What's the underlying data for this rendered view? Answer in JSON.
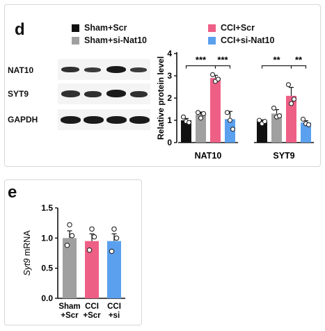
{
  "panel_d": {
    "letter": "d",
    "legend": [
      {
        "label": "Sham+Scr",
        "color": "#111111"
      },
      {
        "label": "CCI+Scr",
        "color": "#ee5f86"
      },
      {
        "label": "Sham+si-Nat10",
        "color": "#a0a0a0"
      },
      {
        "label": "CCI+si-Nat10",
        "color": "#5aa0ee"
      }
    ],
    "blot_labels": [
      "NAT10",
      "SYT9",
      "GAPDH"
    ]
  },
  "panel_e": {
    "letter": "e"
  },
  "chart_data": [
    {
      "type": "bar",
      "ylabel": "Relative protein level",
      "ylim": [
        0,
        4
      ],
      "yticks": [
        "0",
        "1",
        "2",
        "3",
        "4"
      ],
      "groups": [
        "NAT10",
        "SYT9"
      ],
      "categories": [
        "Sham+Scr",
        "Sham+si-Nat10",
        "CCI+Scr",
        "CCI+si-Nat10"
      ],
      "colors": [
        "#111111",
        "#a0a0a0",
        "#ee5f86",
        "#5aa0ee"
      ],
      "series": [
        {
          "group": "NAT10",
          "values": [
            1.0,
            1.25,
            2.9,
            1.05
          ],
          "errors": [
            0.08,
            0.12,
            0.12,
            0.35
          ],
          "points": [
            [
              1.15,
              0.95,
              0.9
            ],
            [
              1.35,
              1.1,
              1.3
            ],
            [
              3.05,
              2.75,
              2.85
            ],
            [
              1.35,
              1.0,
              0.6
            ]
          ]
        },
        {
          "group": "SYT9",
          "values": [
            0.95,
            1.3,
            2.1,
            0.9
          ],
          "errors": [
            0.07,
            0.18,
            0.38,
            0.08
          ],
          "points": [
            [
              1.0,
              0.85,
              0.95
            ],
            [
              1.55,
              1.15,
              1.2
            ],
            [
              2.6,
              1.75,
              1.95
            ],
            [
              1.05,
              0.85,
              0.8
            ]
          ]
        }
      ],
      "significance": [
        {
          "group": "NAT10",
          "from": 0,
          "to": 2,
          "label": "***"
        },
        {
          "group": "NAT10",
          "from": 2,
          "to": 3,
          "label": "***"
        },
        {
          "group": "SYT9",
          "from": 0,
          "to": 2,
          "label": "**"
        },
        {
          "group": "SYT9",
          "from": 2,
          "to": 3,
          "label": "**"
        }
      ]
    },
    {
      "type": "bar",
      "ylabel_italic": "Syt9",
      "ylabel_rest": " mRNA",
      "ylim": [
        0,
        1.5
      ],
      "yticks": [
        "0.0",
        "0.5",
        "1.0",
        "1.5"
      ],
      "categories": [
        [
          "Sham",
          "+Scr"
        ],
        [
          "CCI",
          "+Scr"
        ],
        [
          "CCI",
          "+si"
        ]
      ],
      "colors": [
        "#a0a0a0",
        "#ee5f86",
        "#5aa0ee"
      ],
      "values": [
        1.0,
        0.95,
        0.95
      ],
      "errors": [
        0.12,
        0.12,
        0.12
      ],
      "points": [
        [
          1.22,
          0.88,
          1.04
        ],
        [
          1.15,
          0.8,
          1.02
        ],
        [
          1.15,
          0.78,
          1.0
        ]
      ]
    }
  ]
}
